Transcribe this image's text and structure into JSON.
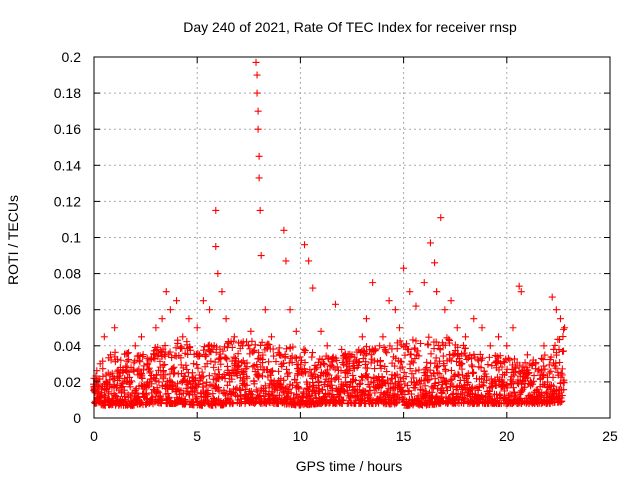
{
  "chart_data": {
    "type": "scatter",
    "title": "Day 240 of 2021, Rate Of TEC Index for receiver rnsp",
    "xlabel": "GPS time / hours",
    "ylabel": "ROTI / TECUs",
    "xlim": [
      0,
      25
    ],
    "ylim": [
      0,
      0.2
    ],
    "xticks": [
      0,
      5,
      10,
      15,
      20,
      25
    ],
    "yticks": [
      0,
      0.02,
      0.04,
      0.06,
      0.08,
      0.1,
      0.12,
      0.14,
      0.16,
      0.18,
      0.2
    ],
    "xtick_labels": [
      "0",
      "5",
      "10",
      "15",
      "20",
      "25"
    ],
    "ytick_labels": [
      "0",
      "0.02",
      "0.04",
      "0.06",
      "0.08",
      "0.1",
      "0.12",
      "0.14",
      "0.16",
      "0.18",
      "0.2"
    ],
    "grid": true,
    "marker": "+",
    "color": "#ff0000",
    "series": [
      {
        "name": "ROTI",
        "x": [
          0.0,
          0.3,
          0.5,
          0.8,
          1.0,
          1.3,
          1.6,
          2.0,
          2.3,
          2.6,
          3.0,
          3.3,
          3.5,
          3.7,
          4.0,
          4.3,
          4.6,
          5.0,
          5.3,
          5.6,
          5.9,
          5.9,
          6.0,
          6.2,
          6.4,
          6.8,
          7.2,
          7.6,
          7.85,
          7.9,
          7.9,
          7.95,
          7.95,
          8.0,
          8.0,
          8.05,
          8.1,
          8.3,
          8.6,
          9.0,
          9.2,
          9.3,
          9.5,
          9.8,
          10.2,
          10.4,
          10.6,
          11.0,
          11.3,
          11.7,
          12.0,
          12.5,
          13.0,
          13.2,
          13.5,
          14.0,
          14.3,
          14.6,
          14.8,
          15.0,
          15.3,
          15.6,
          16.0,
          16.3,
          16.5,
          16.6,
          16.8,
          17.0,
          17.3,
          17.6,
          18.0,
          18.4,
          18.8,
          19.2,
          19.6,
          20.0,
          20.3,
          20.6,
          20.7,
          21.0,
          21.4,
          21.8,
          22.2,
          22.4,
          22.6,
          22.8
        ],
        "y": [
          0.022,
          0.03,
          0.045,
          0.035,
          0.05,
          0.032,
          0.028,
          0.04,
          0.045,
          0.03,
          0.05,
          0.055,
          0.07,
          0.06,
          0.065,
          0.045,
          0.055,
          0.05,
          0.065,
          0.06,
          0.115,
          0.095,
          0.08,
          0.07,
          0.055,
          0.045,
          0.04,
          0.048,
          0.197,
          0.19,
          0.18,
          0.17,
          0.16,
          0.145,
          0.133,
          0.115,
          0.09,
          0.06,
          0.045,
          0.035,
          0.104,
          0.087,
          0.06,
          0.048,
          0.096,
          0.087,
          0.072,
          0.048,
          0.04,
          0.063,
          0.038,
          0.035,
          0.045,
          0.055,
          0.075,
          0.045,
          0.065,
          0.06,
          0.05,
          0.083,
          0.07,
          0.062,
          0.075,
          0.097,
          0.086,
          0.07,
          0.111,
          0.06,
          0.065,
          0.05,
          0.045,
          0.055,
          0.05,
          0.04,
          0.045,
          0.04,
          0.05,
          0.073,
          0.07,
          0.035,
          0.03,
          0.04,
          0.067,
          0.06,
          0.055,
          0.05
        ]
      }
    ],
    "band": {
      "description": "dense point cloud",
      "x": [
        0.0,
        0.5,
        1.0,
        2.0,
        3.0,
        4.0,
        5.0,
        6.0,
        7.0,
        8.0,
        9.0,
        10.0,
        11.0,
        12.0,
        13.0,
        14.0,
        15.0,
        16.0,
        17.0,
        18.0,
        19.0,
        20.0,
        21.0,
        22.0,
        22.8
      ],
      "low": [
        0.008,
        0.007,
        0.007,
        0.007,
        0.008,
        0.008,
        0.007,
        0.007,
        0.008,
        0.008,
        0.008,
        0.007,
        0.008,
        0.008,
        0.008,
        0.008,
        0.007,
        0.007,
        0.008,
        0.008,
        0.008,
        0.008,
        0.008,
        0.008,
        0.009
      ],
      "high": [
        0.025,
        0.033,
        0.038,
        0.036,
        0.04,
        0.045,
        0.04,
        0.045,
        0.042,
        0.045,
        0.04,
        0.04,
        0.035,
        0.035,
        0.04,
        0.04,
        0.045,
        0.045,
        0.045,
        0.04,
        0.035,
        0.035,
        0.03,
        0.038,
        0.05
      ]
    }
  }
}
